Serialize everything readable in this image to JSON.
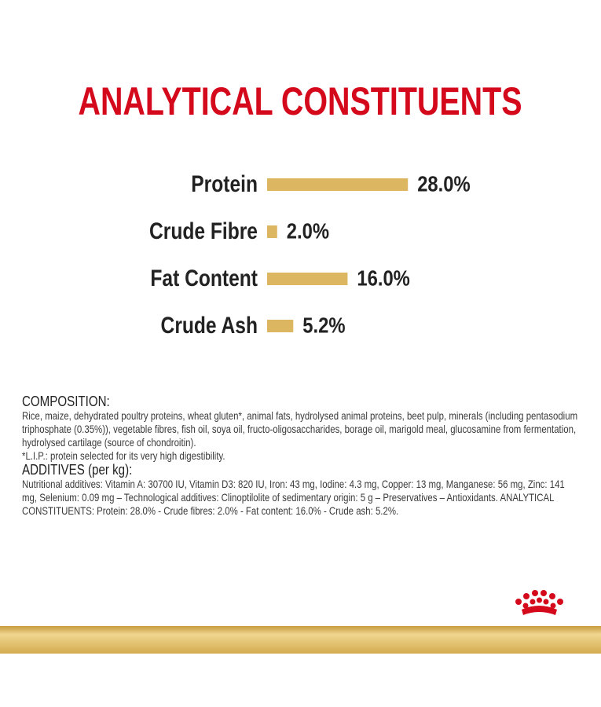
{
  "chart_data": {
    "type": "bar",
    "orientation": "horizontal",
    "title": "ANALYTICAL CONSTITUENTS",
    "categories": [
      "Protein",
      "Crude Fibre",
      "Fat Content",
      "Crude Ash"
    ],
    "values": [
      28.0,
      2.0,
      16.0,
      5.2
    ],
    "value_labels": [
      "28.0%",
      "2.0%",
      "16.0%",
      "5.2%"
    ],
    "color": "#dcb660",
    "title_color": "#d5091c"
  },
  "composition": {
    "heading": "COMPOSITION:",
    "text": "Rice, maize, dehydrated poultry proteins, wheat gluten*, animal fats, hydrolysed animal proteins, beet pulp, minerals (including pentasodium triphosphate (0.35%)), vegetable fibres, fish oil, soya oil, fructo-oligosaccharides, borage oil, marigold meal, glucosamine from fermentation, hydrolysed cartilage (source of chondroitin).",
    "footnote": "*L.I.P.: protein selected for its very high digestibility."
  },
  "additives": {
    "heading": "ADDITIVES (per kg):",
    "text": "Nutritional additives: Vitamin A: 30700 IU, Vitamin D3: 820 IU, Iron: 43 mg, Iodine: 4.3 mg, Copper: 13 mg, Manganese: 56 mg, Zinc: 141 mg, Selenium: 0.09 mg – Technological additives: Clinoptilolite of sedimentary origin: 5 g – Preservatives – Antioxidants. ANALYTICAL CONSTITUENTS: Protein: 28.0% - Crude fibres: 2.0% - Fat content: 16.0% - Crude ash: 5.2%."
  }
}
